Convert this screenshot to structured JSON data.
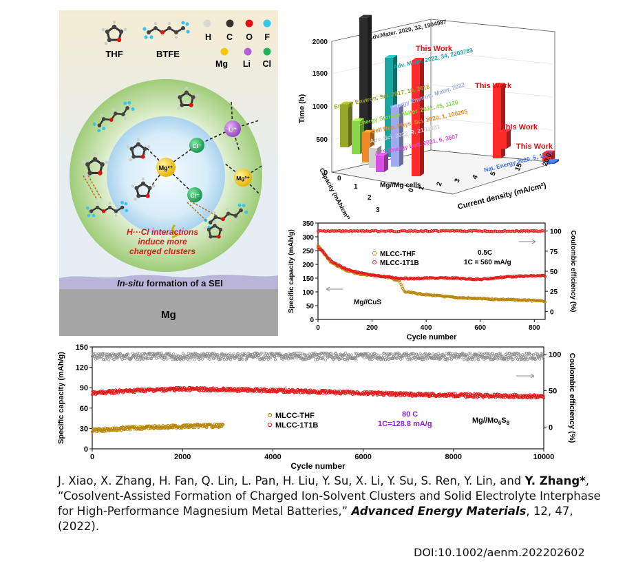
{
  "schematic": {
    "legend": {
      "THF": "THF",
      "BTFE": "BTFE",
      "H": "H",
      "C": "C",
      "O": "O",
      "F": "F",
      "Mg": "Mg",
      "Li": "Li",
      "Cl": "Cl"
    },
    "atom_colors": {
      "H": "#d8d8d8",
      "C": "#333333",
      "O": "#e01010",
      "F": "#33c6f0",
      "Mg": "#f8c80c",
      "Li": "#b45ed6",
      "Cl": "#1fb45a"
    },
    "ions": {
      "mg_center": "Mg²⁺",
      "cl_top": "Cl⁻",
      "cl_bottom": "Cl⁻",
      "li": "Li⁺",
      "mg_right": "Mg²⁺"
    },
    "annotation": [
      "H···Cl interactions",
      "induce more",
      "charged  clusters"
    ],
    "sei_prefix": "In-situ",
    "sei_suffix": " formation of a SEI",
    "substrate": "Mg"
  },
  "chart3d": {
    "chart_data": {
      "type": "bar",
      "title": "",
      "zlabel": "Time (h)",
      "xlabel": "Current density (mA/cm²)",
      "ylabel": "Capacity (mAh/cm²)",
      "z_ticks": [
        "0",
        "500",
        "1000",
        "1500",
        "2000"
      ],
      "x_ticks": [
        "0",
        "1",
        "2",
        "3",
        "4",
        "5",
        "15",
        "20.0"
      ],
      "y_ticks": [
        "0",
        "1",
        "2",
        "3"
      ],
      "cell_label": "Mg//Mg cells",
      "bars": [
        {
          "label": "Adv.Mater. 2020, 32, 1904987",
          "time": 1900,
          "color": "#2b2b2b"
        },
        {
          "label": "This Work",
          "time": 1750,
          "color": "#ff2a2a"
        },
        {
          "label": "Adv. Mater. 2022, 34, 2203783",
          "time": 1500,
          "color": "#1aa6a0"
        },
        {
          "label": "Energy Environ. Sci. 2017, 10, 2616",
          "time": 650,
          "color": "#98a62a"
        },
        {
          "label": "Energy Environ. Mater. 2022",
          "time": 900,
          "color": "#9fa8f0"
        },
        {
          "label": "Energy Storage Mater. 2022, 45, 1120",
          "time": 500,
          "color": "#8ad64a"
        },
        {
          "label": "Cell Rep. Phys. Sci. 2020, 1, 100265",
          "time": 450,
          "color": "#f08a28"
        },
        {
          "label": "Adv. Sci. 2022, 9, 2103881",
          "time": 300,
          "color": "#d0d0d0"
        },
        {
          "label": "ACS Energy Lett. 2021, 6, 3607",
          "time": 250,
          "color": "#d84ee0"
        },
        {
          "label": "This Work",
          "time": 1100,
          "color": "#ff2a2a"
        },
        {
          "label": "This Work",
          "time": 250,
          "color": "#ff2a2a"
        },
        {
          "label": "This Work",
          "time": 120,
          "color": "#ff2a2a"
        },
        {
          "label": "Nat. Energy 2020, 5, 1043",
          "time": 30,
          "color": "#3a6cf0"
        }
      ]
    }
  },
  "chart_mid": {
    "chart_data": {
      "type": "scatter",
      "xlabel": "Cycle number",
      "ylabel": "Specific capacity (mAh/g)",
      "y2label": "Coulombic efficiency (%)",
      "xlim": [
        0,
        840
      ],
      "ylim": [
        0,
        350
      ],
      "y2lim": [
        -10,
        110
      ],
      "x_ticks": [
        "0",
        "200",
        "400",
        "600",
        "800"
      ],
      "y_ticks": [
        "0",
        "50",
        "100",
        "150",
        "200",
        "250",
        "300",
        "350"
      ],
      "y2_ticks": [
        "0",
        "25",
        "50",
        "75",
        "100"
      ],
      "legend": [
        "MLCC-THF",
        "MLCC-1T1B"
      ],
      "annotations": [
        "0.5C",
        "1C = 560 mA/g",
        "Mg//CuS"
      ],
      "series": [
        {
          "name": "MLCC-THF",
          "color": "#b8860b",
          "x": [
            0,
            20,
            50,
            100,
            150,
            200,
            250,
            300,
            320,
            400,
            500,
            600,
            700,
            800,
            840
          ],
          "y": [
            270,
            240,
            205,
            180,
            165,
            160,
            155,
            140,
            100,
            90,
            80,
            75,
            72,
            68,
            66
          ]
        },
        {
          "name": "MLCC-1T1B",
          "color": "#e01c1c",
          "x": [
            0,
            20,
            50,
            100,
            150,
            200,
            250,
            300,
            350,
            400,
            500,
            600,
            700,
            800,
            840
          ],
          "y": [
            260,
            245,
            210,
            185,
            170,
            160,
            155,
            150,
            148,
            150,
            150,
            145,
            155,
            158,
            158
          ]
        }
      ],
      "ce": {
        "value": 100
      }
    }
  },
  "chart_bottom": {
    "chart_data": {
      "type": "scatter",
      "xlabel": "Cycle number",
      "ylabel": "Specific capacity (mAh/g)",
      "y2label": "Coulombic efficiency (%)",
      "xlim": [
        0,
        10000
      ],
      "ylim": [
        0,
        150
      ],
      "y2lim": [
        -30,
        110
      ],
      "x_ticks": [
        "0",
        "2000",
        "4000",
        "6000",
        "8000",
        "10000"
      ],
      "y_ticks": [
        "0",
        "30",
        "60",
        "90",
        "120",
        "150"
      ],
      "y2_ticks": [
        "0",
        "50",
        "100"
      ],
      "legend": [
        "MLCC-THF",
        "MLCC-1T1B"
      ],
      "annotations": [
        "80 C",
        "1C=128.8 mA/g",
        "Mg//Mo",
        "6",
        "S",
        "8"
      ],
      "series": [
        {
          "name": "MLCC-THF",
          "color": "#b8860b",
          "x": [
            0,
            500,
            1000,
            1500,
            2000,
            2500,
            2900
          ],
          "y": [
            27,
            29,
            31,
            32,
            33,
            34,
            34
          ]
        },
        {
          "name": "MLCC-1T1B",
          "color": "#e01c1c",
          "x": [
            0,
            1000,
            2000,
            3000,
            4000,
            5000,
            6000,
            7000,
            8000,
            9000,
            10000
          ],
          "y": [
            82,
            86,
            88,
            87,
            86,
            84,
            82,
            80,
            79,
            78,
            77
          ]
        }
      ],
      "ce": {
        "value": 97
      }
    }
  },
  "citation": {
    "authors": "J. Xiao, X. Zhang, H. Fan, Q. Lin, L. Pan, H. Liu, Y. Su, X. Li, Y. Su, S. Ren, Y. Lin, and ",
    "lead": "Y. Zhang*",
    "title": ", “Cosolvent-Assisted Formation of Charged Ion-Solvent Clusters and Solid Electrolyte Interphase for High-Performance Magnesium Metal Batteries,” ",
    "journal": "Advanced Energy Materials",
    "tail": ", 12, 47, (2022).",
    "doi": "DOI:10.1002/aenm.202202602"
  }
}
